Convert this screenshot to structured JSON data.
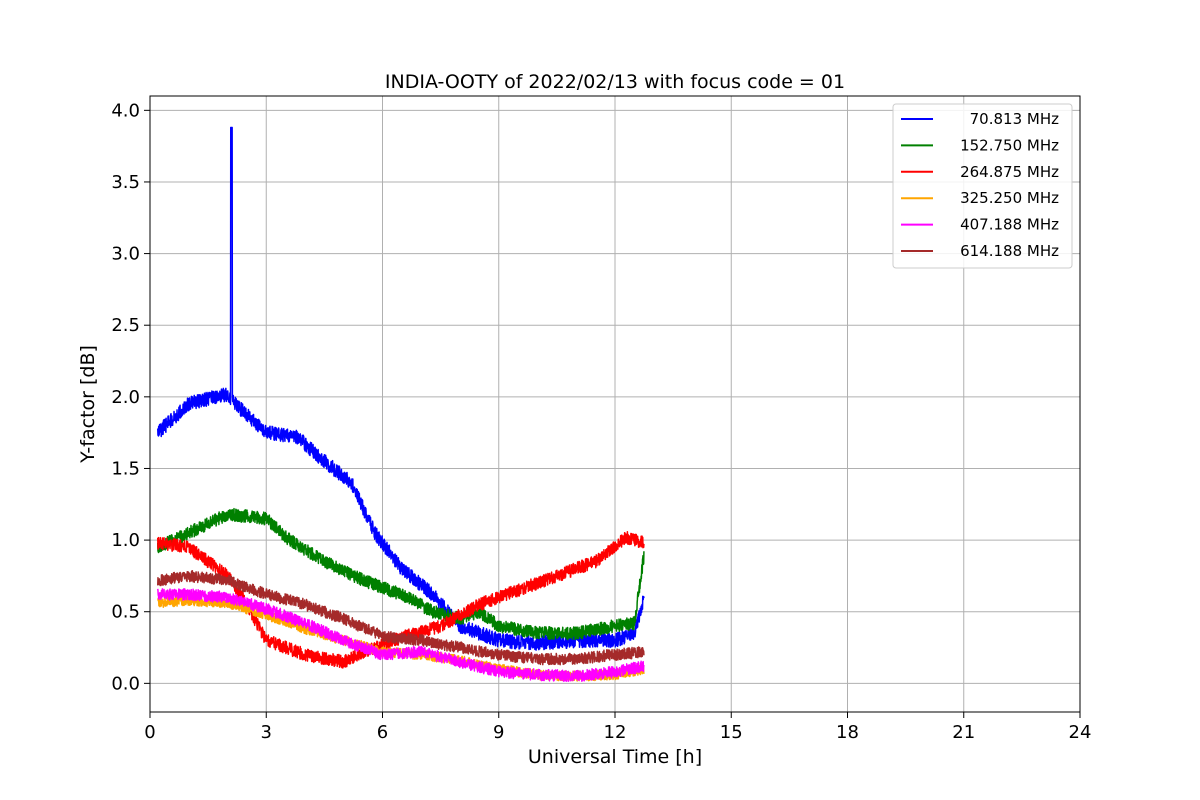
{
  "chart_data": {
    "type": "line",
    "title": "INDIA-OOTY of 2022/02/13 with focus code = 01",
    "xlabel": "Universal Time [h]",
    "ylabel": "Y-factor [dB]",
    "xlim": [
      0,
      24
    ],
    "ylim": [
      -0.2,
      4.1
    ],
    "xticks": [
      0,
      3,
      6,
      9,
      12,
      15,
      18,
      21,
      24
    ],
    "xtick_labels": [
      "0",
      "3",
      "6",
      "9",
      "12",
      "15",
      "18",
      "21",
      "24"
    ],
    "yticks": [
      0.0,
      0.5,
      1.0,
      1.5,
      2.0,
      2.5,
      3.0,
      3.5,
      4.0
    ],
    "ytick_labels": [
      "0.0",
      "0.5",
      "1.0",
      "1.5",
      "2.0",
      "2.5",
      "3.0",
      "3.5",
      "4.0"
    ],
    "grid": true,
    "legend_position": "top-right",
    "series": [
      {
        "name": "70.813 MHz",
        "color": "#0000ff",
        "noise": 0.05,
        "points": [
          [
            0.2,
            1.75
          ],
          [
            1.0,
            1.95
          ],
          [
            2.0,
            2.02
          ],
          [
            2.1,
            3.88
          ],
          [
            2.2,
            1.95
          ],
          [
            3.0,
            1.75
          ],
          [
            3.8,
            1.72
          ],
          [
            4.5,
            1.55
          ],
          [
            5.2,
            1.4
          ],
          [
            5.8,
            1.05
          ],
          [
            6.5,
            0.8
          ],
          [
            7.3,
            0.62
          ],
          [
            8.0,
            0.4
          ],
          [
            9.0,
            0.3
          ],
          [
            10.0,
            0.28
          ],
          [
            11.0,
            0.3
          ],
          [
            12.0,
            0.3
          ],
          [
            12.5,
            0.35
          ],
          [
            12.75,
            0.6
          ]
        ]
      },
      {
        "name": "152.750 MHz",
        "color": "#008000",
        "noise": 0.045,
        "points": [
          [
            0.2,
            0.95
          ],
          [
            1.0,
            1.05
          ],
          [
            2.0,
            1.18
          ],
          [
            3.0,
            1.15
          ],
          [
            3.5,
            1.02
          ],
          [
            4.5,
            0.85
          ],
          [
            5.5,
            0.72
          ],
          [
            6.5,
            0.62
          ],
          [
            7.3,
            0.5
          ],
          [
            8.0,
            0.45
          ],
          [
            8.5,
            0.5
          ],
          [
            9.0,
            0.4
          ],
          [
            10.0,
            0.35
          ],
          [
            11.0,
            0.35
          ],
          [
            12.0,
            0.4
          ],
          [
            12.5,
            0.42
          ],
          [
            12.75,
            0.9
          ]
        ]
      },
      {
        "name": "264.875 MHz",
        "color": "#ff0000",
        "noise": 0.045,
        "points": [
          [
            0.2,
            0.98
          ],
          [
            1.0,
            0.95
          ],
          [
            2.0,
            0.75
          ],
          [
            2.5,
            0.55
          ],
          [
            3.0,
            0.3
          ],
          [
            4.0,
            0.2
          ],
          [
            5.0,
            0.15
          ],
          [
            5.5,
            0.22
          ],
          [
            6.5,
            0.32
          ],
          [
            7.5,
            0.4
          ],
          [
            8.5,
            0.55
          ],
          [
            9.5,
            0.65
          ],
          [
            10.5,
            0.75
          ],
          [
            11.5,
            0.85
          ],
          [
            12.3,
            1.02
          ],
          [
            12.75,
            0.98
          ]
        ]
      },
      {
        "name": "325.250 MHz",
        "color": "#ffa500",
        "noise": 0.035,
        "points": [
          [
            0.2,
            0.56
          ],
          [
            1.0,
            0.58
          ],
          [
            2.0,
            0.56
          ],
          [
            3.0,
            0.48
          ],
          [
            4.0,
            0.38
          ],
          [
            5.0,
            0.3
          ],
          [
            6.0,
            0.22
          ],
          [
            7.0,
            0.2
          ],
          [
            8.0,
            0.16
          ],
          [
            9.0,
            0.1
          ],
          [
            10.0,
            0.06
          ],
          [
            11.0,
            0.05
          ],
          [
            12.0,
            0.06
          ],
          [
            12.75,
            0.1
          ]
        ]
      },
      {
        "name": "407.188 MHz",
        "color": "#ff00ff",
        "noise": 0.04,
        "points": [
          [
            0.2,
            0.62
          ],
          [
            1.0,
            0.62
          ],
          [
            2.0,
            0.6
          ],
          [
            3.0,
            0.52
          ],
          [
            4.0,
            0.42
          ],
          [
            5.0,
            0.3
          ],
          [
            6.0,
            0.2
          ],
          [
            7.0,
            0.22
          ],
          [
            8.0,
            0.15
          ],
          [
            9.0,
            0.08
          ],
          [
            10.0,
            0.06
          ],
          [
            11.0,
            0.05
          ],
          [
            12.0,
            0.08
          ],
          [
            12.75,
            0.12
          ]
        ]
      },
      {
        "name": "614.188 MHz",
        "color": "#a52a2a",
        "noise": 0.04,
        "points": [
          [
            0.2,
            0.72
          ],
          [
            1.0,
            0.75
          ],
          [
            2.0,
            0.72
          ],
          [
            3.0,
            0.62
          ],
          [
            4.0,
            0.55
          ],
          [
            5.0,
            0.45
          ],
          [
            6.0,
            0.33
          ],
          [
            7.0,
            0.3
          ],
          [
            8.0,
            0.25
          ],
          [
            9.0,
            0.2
          ],
          [
            10.0,
            0.17
          ],
          [
            11.0,
            0.17
          ],
          [
            12.0,
            0.2
          ],
          [
            12.75,
            0.22
          ]
        ]
      }
    ]
  }
}
